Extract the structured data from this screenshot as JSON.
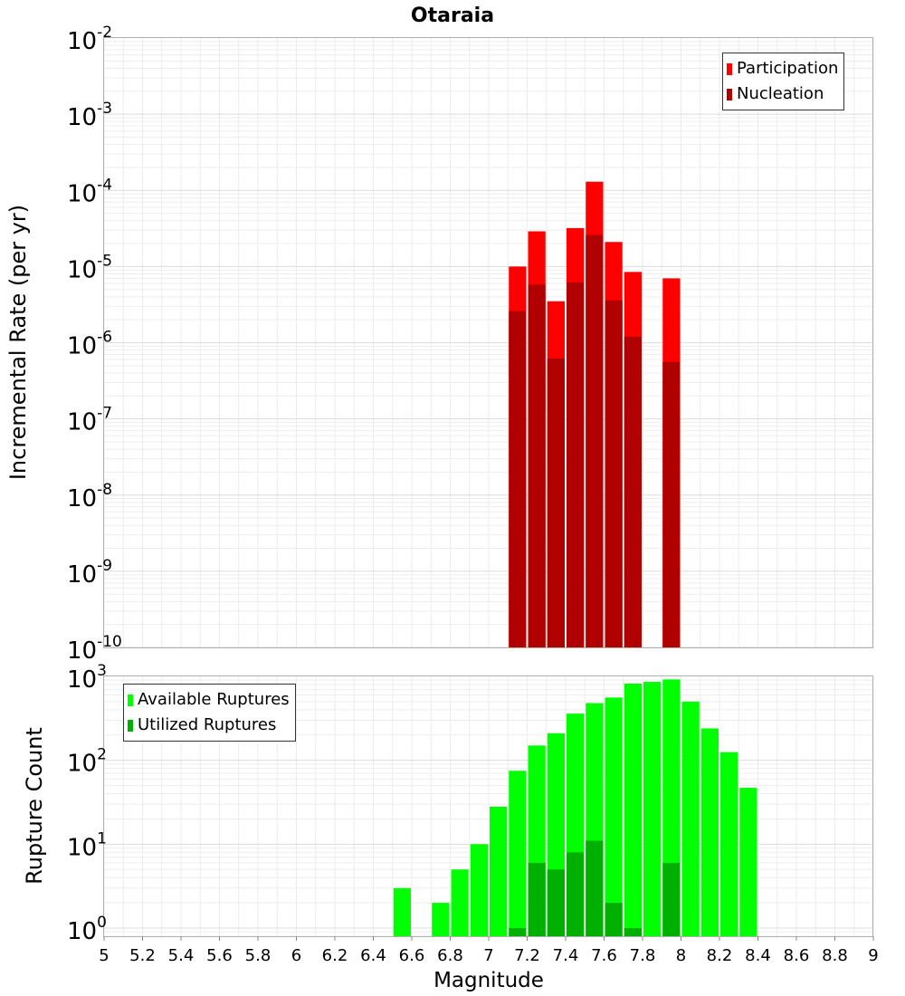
{
  "chart_data": [
    {
      "type": "bar",
      "title": "Otaraia",
      "ylabel": "Incremental Rate (per yr)",
      "xlabel": "",
      "yscale": "log",
      "ylim": [
        1e-10,
        0.01
      ],
      "xlim": [
        5,
        9
      ],
      "bin_width": 0.1,
      "y_ticks": [
        {
          "base": "10",
          "exp": "-10",
          "value": 1e-10
        },
        {
          "base": "10",
          "exp": "-9",
          "value": 1e-09
        },
        {
          "base": "10",
          "exp": "-8",
          "value": 1e-08
        },
        {
          "base": "10",
          "exp": "-7",
          "value": 1e-07
        },
        {
          "base": "10",
          "exp": "-6",
          "value": 1e-06
        },
        {
          "base": "10",
          "exp": "-5",
          "value": 1e-05
        },
        {
          "base": "10",
          "exp": "-4",
          "value": 0.0001
        },
        {
          "base": "10",
          "exp": "-3",
          "value": 0.001
        },
        {
          "base": "10",
          "exp": "-2",
          "value": 0.01
        }
      ],
      "legend": {
        "position": "top-right",
        "entries": [
          "Participation",
          "Nucleation"
        ]
      },
      "series": [
        {
          "name": "Participation",
          "color": "#ff0000",
          "x": [
            7.15,
            7.25,
            7.35,
            7.45,
            7.55,
            7.65,
            7.75,
            7.95
          ],
          "values": [
            1e-05,
            2.9e-05,
            3.5e-06,
            3.2e-05,
            0.00013,
            2.1e-05,
            8.5e-06,
            7e-06
          ]
        },
        {
          "name": "Nucleation",
          "color": "#b00000",
          "x": [
            7.15,
            7.25,
            7.35,
            7.45,
            7.55,
            7.65,
            7.75,
            7.95
          ],
          "values": [
            2.6e-06,
            5.8e-06,
            6.2e-07,
            6.2e-06,
            2.6e-05,
            3.6e-06,
            1.2e-06,
            5.6e-07
          ]
        }
      ]
    },
    {
      "type": "bar",
      "title": "",
      "ylabel": "Rupture Count",
      "xlabel": "Magnitude",
      "yscale": "log",
      "ylim": [
        0.8,
        1000
      ],
      "xlim": [
        5,
        9
      ],
      "bin_width": 0.1,
      "x_ticks": [
        "5",
        "5.2",
        "5.4",
        "5.6",
        "5.8",
        "6",
        "6.2",
        "6.4",
        "6.6",
        "6.8",
        "7",
        "7.2",
        "7.4",
        "7.6",
        "7.8",
        "8",
        "8.2",
        "8.4",
        "8.6",
        "8.8",
        "9"
      ],
      "y_ticks": [
        {
          "base": "10",
          "exp": "0",
          "value": 1
        },
        {
          "base": "10",
          "exp": "1",
          "value": 10
        },
        {
          "base": "10",
          "exp": "2",
          "value": 100
        },
        {
          "base": "10",
          "exp": "3",
          "value": 1000
        }
      ],
      "legend": {
        "position": "top-left",
        "entries": [
          "Available Ruptures",
          "Utilized Ruptures"
        ]
      },
      "series": [
        {
          "name": "Available Ruptures",
          "color": "#00ff00",
          "x": [
            6.55,
            6.75,
            6.85,
            6.95,
            7.05,
            7.15,
            7.25,
            7.35,
            7.45,
            7.55,
            7.65,
            7.75,
            7.85,
            7.95,
            8.05,
            8.15,
            8.25,
            8.35
          ],
          "values": [
            3,
            2,
            5,
            10,
            28,
            75,
            150,
            210,
            360,
            480,
            560,
            820,
            860,
            920,
            500,
            240,
            125,
            47
          ]
        },
        {
          "name": "Utilized Ruptures",
          "color": "#00b000",
          "x": [
            7.15,
            7.25,
            7.35,
            7.45,
            7.55,
            7.65,
            7.75,
            7.95
          ],
          "values": [
            1,
            6,
            5,
            8,
            11,
            2,
            1,
            6
          ]
        }
      ]
    }
  ]
}
